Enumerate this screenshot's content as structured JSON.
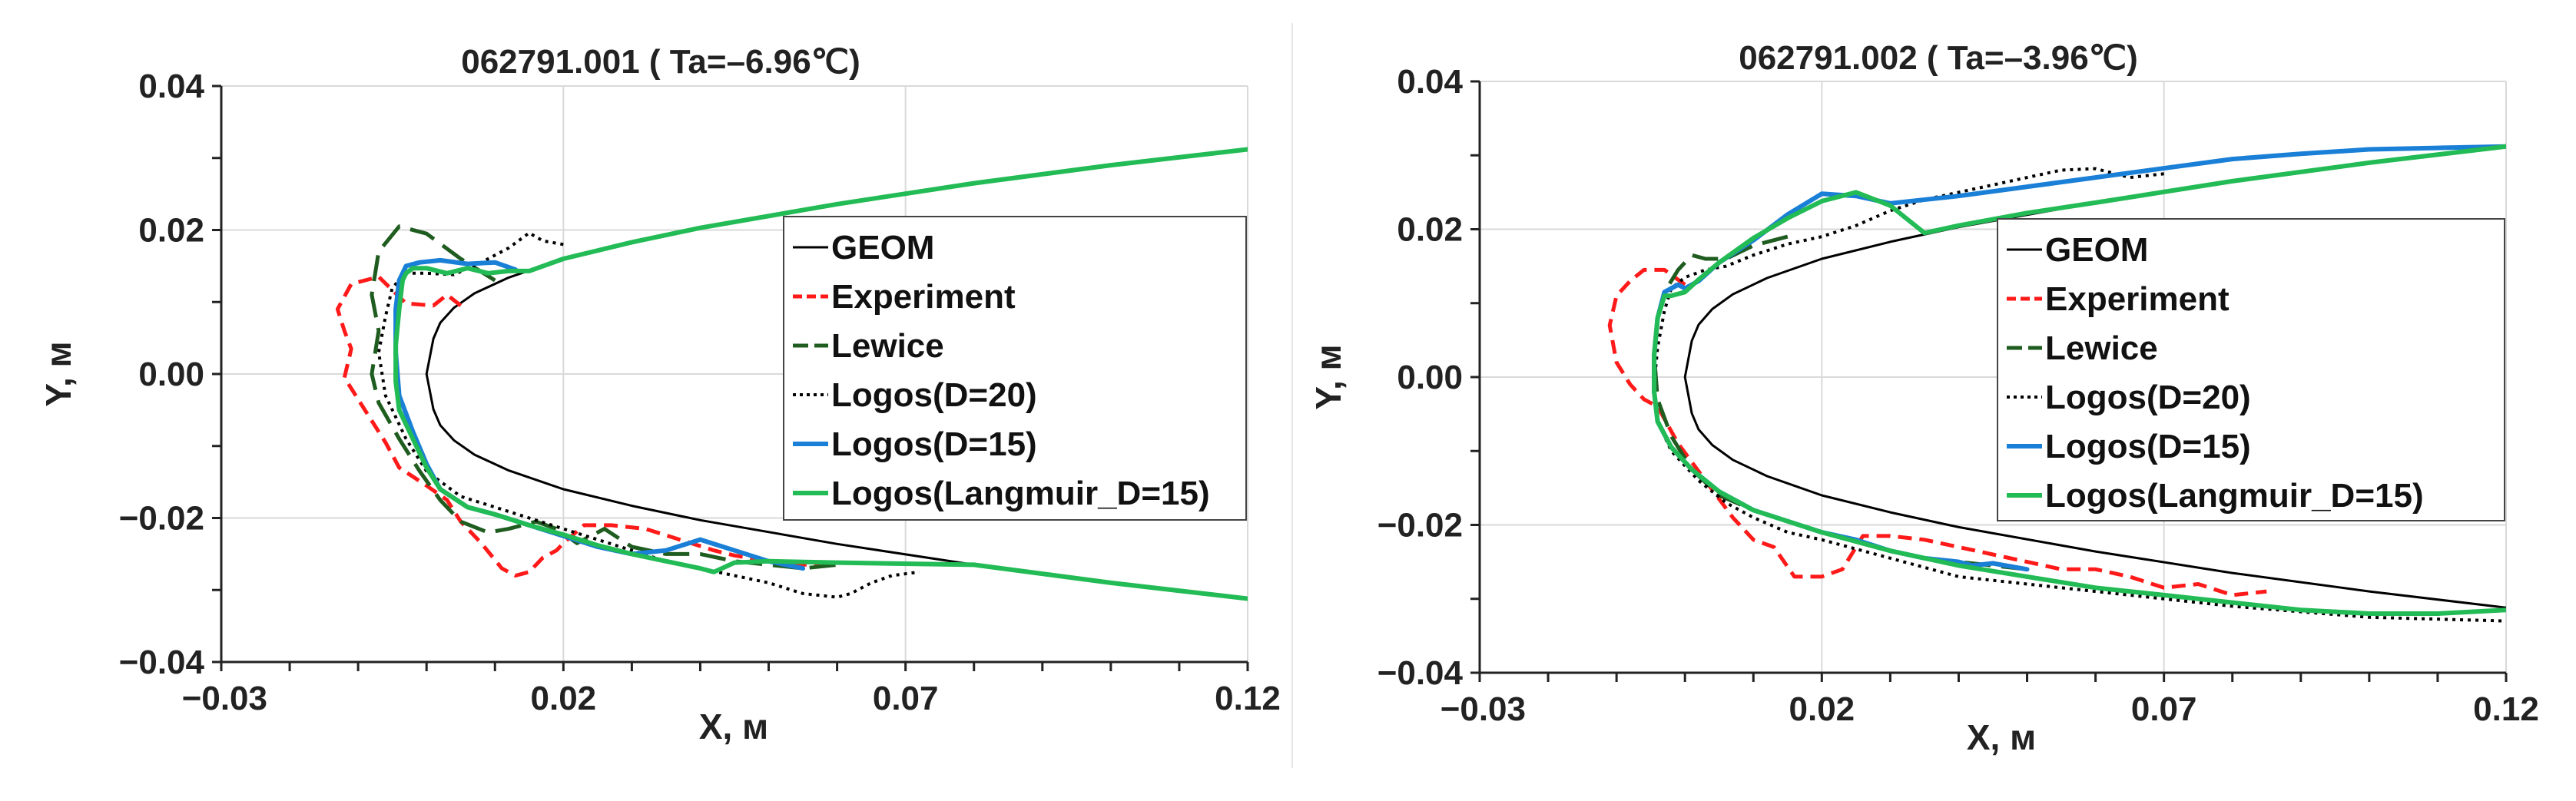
{
  "chart_data": [
    {
      "type": "line",
      "title": "062791.001 ( Ta=–6.96℃)",
      "xlabel": "X, м",
      "ylabel": "Y, м",
      "xlim": [
        -0.03,
        0.12
      ],
      "ylim": [
        -0.04,
        0.04
      ],
      "xticks": [
        "−0.03",
        "0.02",
        "0.07",
        "0.12"
      ],
      "yticks": [
        "0.04",
        "0.02",
        "0.00",
        "−0.02",
        "−0.04"
      ],
      "legend_position": "right",
      "series": [
        {
          "name": "GEOM",
          "color": "#000000",
          "style": "solid",
          "width": 3,
          "x": [
            0.12,
            0.1,
            0.08,
            0.06,
            0.04,
            0.03,
            0.02,
            0.012,
            0.007,
            0.004,
            0.002,
            0.001,
            0.0,
            0.001,
            0.002,
            0.004,
            0.007,
            0.012,
            0.02,
            0.03,
            0.04,
            0.06,
            0.08,
            0.1,
            0.12
          ],
          "y": [
            0.0312,
            0.029,
            0.0265,
            0.0236,
            0.0203,
            0.0183,
            0.016,
            0.0134,
            0.0112,
            0.0092,
            0.0071,
            0.0049,
            0.0,
            -0.0049,
            -0.0071,
            -0.0092,
            -0.0112,
            -0.0134,
            -0.016,
            -0.0183,
            -0.0203,
            -0.0236,
            -0.0265,
            -0.029,
            -0.0312
          ]
        },
        {
          "name": "Experiment",
          "color": "#ff1a1a",
          "style": "dashed",
          "width": 5,
          "x": [
            0.005,
            0.003,
            0.001,
            -0.003,
            -0.007,
            -0.011,
            -0.013,
            -0.012,
            -0.011,
            -0.012,
            -0.009,
            -0.006,
            -0.004,
            0.0,
            0.003,
            0.005,
            0.008,
            0.011,
            0.013,
            0.015,
            0.017,
            0.019,
            0.02,
            0.023,
            0.027,
            0.032,
            0.037,
            0.042,
            0.045,
            0.05,
            0.055,
            0.06
          ],
          "y": [
            0.0095,
            0.011,
            0.0095,
            0.0098,
            0.0135,
            0.0125,
            0.009,
            0.006,
            0.0035,
            -0.0005,
            -0.005,
            -0.0095,
            -0.013,
            -0.0155,
            -0.0175,
            -0.0205,
            -0.0235,
            -0.027,
            -0.028,
            -0.0275,
            -0.0255,
            -0.0245,
            -0.0235,
            -0.021,
            -0.021,
            -0.0215,
            -0.023,
            -0.0245,
            -0.0252,
            -0.026,
            -0.0265,
            -0.0262
          ]
        },
        {
          "name": "Lewice",
          "color": "#1f5c1f",
          "style": "longdash",
          "width": 5,
          "x": [
            0.01,
            0.005,
            0.0,
            -0.004,
            -0.007,
            -0.008,
            -0.007,
            -0.008,
            -0.007,
            -0.004,
            -0.001,
            0.002,
            0.005,
            0.009,
            0.012,
            0.016,
            0.019,
            0.022,
            0.026,
            0.03,
            0.035,
            0.04,
            0.045,
            0.05,
            0.055,
            0.06
          ],
          "y": [
            0.013,
            0.016,
            0.0195,
            0.0205,
            0.017,
            0.011,
            0.006,
            0.0,
            -0.004,
            -0.009,
            -0.0135,
            -0.0175,
            -0.0205,
            -0.022,
            -0.0215,
            -0.0205,
            -0.0215,
            -0.0235,
            -0.0215,
            -0.024,
            -0.025,
            -0.025,
            -0.026,
            -0.0265,
            -0.027,
            -0.0265
          ]
        },
        {
          "name": "Logos(D=20)",
          "color": "#000000",
          "style": "dotted",
          "width": 4,
          "x": [
            0.02,
            0.017,
            0.015,
            0.012,
            0.008,
            0.004,
            0.0,
            -0.003,
            -0.005,
            -0.006,
            -0.007,
            -0.006,
            -0.003,
            0.0,
            0.005,
            0.01,
            0.015,
            0.02,
            0.025,
            0.03,
            0.035,
            0.04,
            0.045,
            0.05,
            0.055,
            0.06,
            0.062,
            0.065,
            0.068,
            0.072
          ],
          "y": [
            0.018,
            0.0185,
            0.0196,
            0.0175,
            0.0155,
            0.0138,
            0.014,
            0.014,
            0.012,
            0.008,
            0.003,
            -0.003,
            -0.009,
            -0.0135,
            -0.017,
            -0.0185,
            -0.02,
            -0.0215,
            -0.023,
            -0.0245,
            -0.026,
            -0.027,
            -0.028,
            -0.029,
            -0.0305,
            -0.031,
            -0.0305,
            -0.029,
            -0.028,
            -0.0275
          ]
        },
        {
          "name": "Logos(D=15)",
          "color": "#1a7fd6",
          "style": "solid",
          "width": 6,
          "x": [
            0.013,
            0.01,
            0.006,
            0.002,
            -0.001,
            -0.003,
            -0.004,
            -0.0045,
            -0.0045,
            -0.004,
            -0.002,
            0.0,
            0.002,
            0.006,
            0.01,
            0.015,
            0.02,
            0.025,
            0.03,
            0.035,
            0.04,
            0.045,
            0.05,
            0.055
          ],
          "y": [
            0.0145,
            0.0155,
            0.0153,
            0.0158,
            0.0155,
            0.015,
            0.013,
            0.009,
            0.003,
            -0.003,
            -0.008,
            -0.0125,
            -0.016,
            -0.0185,
            -0.0195,
            -0.021,
            -0.0225,
            -0.024,
            -0.025,
            -0.0245,
            -0.023,
            -0.0245,
            -0.026,
            -0.027
          ]
        },
        {
          "name": "Logos(Langmuir_D=15)",
          "color": "#22bb55",
          "style": "solid",
          "width": 6,
          "x": [
            0.12,
            0.1,
            0.08,
            0.06,
            0.04,
            0.03,
            0.02,
            0.015,
            0.012,
            0.009,
            0.006,
            0.003,
            0.0,
            -0.002,
            -0.003,
            -0.0035,
            -0.004,
            -0.0045,
            -0.0045,
            -0.004,
            -0.002,
            0.0,
            0.002,
            0.006,
            0.01,
            0.015,
            0.02,
            0.025,
            0.03,
            0.035,
            0.04,
            0.042,
            0.045,
            0.05,
            0.06,
            0.08,
            0.1,
            0.12
          ],
          "y": [
            0.0312,
            0.029,
            0.0265,
            0.0236,
            0.0203,
            0.0183,
            0.016,
            0.0143,
            0.0143,
            0.014,
            0.0147,
            0.014,
            0.0147,
            0.0147,
            0.014,
            0.013,
            0.009,
            0.004,
            -0.001,
            -0.005,
            -0.009,
            -0.013,
            -0.016,
            -0.0185,
            -0.0195,
            -0.021,
            -0.0223,
            -0.0238,
            -0.025,
            -0.026,
            -0.027,
            -0.0275,
            -0.0262,
            -0.026,
            -0.0262,
            -0.0265,
            -0.029,
            -0.0312
          ]
        }
      ]
    },
    {
      "type": "line",
      "title": "062791.002 ( Ta=–3.96℃)",
      "xlabel": "X, м",
      "ylabel": "Y, м",
      "xlim": [
        -0.03,
        0.12
      ],
      "ylim": [
        -0.04,
        0.04
      ],
      "xticks": [
        "−0.03",
        "0.02",
        "0.07",
        "0.12"
      ],
      "yticks": [
        "0.04",
        "0.02",
        "0.00",
        "−0.02",
        "−0.04"
      ],
      "legend_position": "right",
      "series": [
        {
          "name": "GEOM",
          "color": "#000000",
          "style": "solid",
          "width": 3,
          "x": [
            0.12,
            0.1,
            0.08,
            0.06,
            0.04,
            0.03,
            0.02,
            0.012,
            0.007,
            0.004,
            0.002,
            0.001,
            0.0,
            0.001,
            0.002,
            0.004,
            0.007,
            0.012,
            0.02,
            0.03,
            0.04,
            0.06,
            0.08,
            0.1,
            0.12
          ],
          "y": [
            0.0312,
            0.029,
            0.0265,
            0.0236,
            0.0203,
            0.0183,
            0.016,
            0.0134,
            0.0112,
            0.0092,
            0.0071,
            0.0049,
            0.0,
            -0.0049,
            -0.0071,
            -0.0092,
            -0.0112,
            -0.0134,
            -0.016,
            -0.0183,
            -0.0203,
            -0.0236,
            -0.0265,
            -0.029,
            -0.0312
          ]
        },
        {
          "name": "Experiment",
          "color": "#ff1a1a",
          "style": "dashed",
          "width": 5,
          "x": [
            0.0,
            -0.003,
            -0.006,
            -0.008,
            -0.01,
            -0.011,
            -0.01,
            -0.008,
            -0.006,
            -0.004,
            -0.001,
            0.003,
            0.007,
            0.01,
            0.013,
            0.016,
            0.018,
            0.02,
            0.023,
            0.026,
            0.03,
            0.035,
            0.04,
            0.045,
            0.05,
            0.055,
            0.06,
            0.065,
            0.07,
            0.075,
            0.08,
            0.085
          ],
          "y": [
            0.0125,
            0.0145,
            0.0145,
            0.013,
            0.011,
            0.007,
            0.002,
            -0.001,
            -0.003,
            -0.004,
            -0.009,
            -0.014,
            -0.019,
            -0.022,
            -0.023,
            -0.027,
            -0.027,
            -0.027,
            -0.026,
            -0.0215,
            -0.0215,
            -0.022,
            -0.023,
            -0.024,
            -0.025,
            -0.026,
            -0.026,
            -0.027,
            -0.0285,
            -0.028,
            -0.0295,
            -0.029
          ]
        },
        {
          "name": "Lewice",
          "color": "#1f5c1f",
          "style": "longdash",
          "width": 5,
          "x": [
            0.015,
            0.01,
            0.006,
            0.003,
            0.001,
            -0.001,
            -0.003,
            -0.004,
            -0.0045,
            -0.004,
            -0.002,
            0.001,
            0.005,
            0.01,
            0.015,
            0.02,
            0.025,
            0.03,
            0.035,
            0.04,
            0.045,
            0.05
          ],
          "y": [
            0.019,
            0.0178,
            0.016,
            0.016,
            0.0165,
            0.0145,
            0.0115,
            0.008,
            0.003,
            -0.003,
            -0.008,
            -0.0125,
            -0.016,
            -0.018,
            -0.0195,
            -0.021,
            -0.022,
            -0.0235,
            -0.0245,
            -0.025,
            -0.0255,
            -0.026
          ]
        },
        {
          "name": "Logos(D=20)",
          "color": "#000000",
          "style": "dotted",
          "width": 4,
          "x": [
            0.07,
            0.065,
            0.06,
            0.055,
            0.05,
            0.045,
            0.04,
            0.035,
            0.03,
            0.025,
            0.02,
            0.015,
            0.01,
            0.006,
            0.003,
            0.0,
            -0.002,
            -0.003,
            -0.004,
            -0.0045,
            -0.004,
            -0.002,
            0.002,
            0.006,
            0.01,
            0.015,
            0.02,
            0.03,
            0.04,
            0.06,
            0.08,
            0.1,
            0.12
          ],
          "y": [
            0.0275,
            0.027,
            0.0282,
            0.028,
            0.027,
            0.026,
            0.025,
            0.024,
            0.0225,
            0.0205,
            0.019,
            0.018,
            0.0165,
            0.015,
            0.0145,
            0.0135,
            0.012,
            0.009,
            0.004,
            -0.001,
            -0.006,
            -0.01,
            -0.014,
            -0.017,
            -0.019,
            -0.021,
            -0.022,
            -0.0245,
            -0.027,
            -0.029,
            -0.031,
            -0.0325,
            -0.033
          ]
        },
        {
          "name": "Logos(D=15)",
          "color": "#1a7fd6",
          "style": "solid",
          "width": 6,
          "x": [
            0.12,
            0.11,
            0.1,
            0.09,
            0.08,
            0.06,
            0.04,
            0.03,
            0.025,
            0.02,
            0.015,
            0.01,
            0.005,
            0.002,
            0.0,
            -0.001,
            -0.003,
            -0.004,
            -0.0045,
            -0.0045,
            -0.004,
            -0.002,
            0.001,
            0.005,
            0.01,
            0.015,
            0.02,
            0.025,
            0.03,
            0.035,
            0.04,
            0.042,
            0.045,
            0.05
          ],
          "y": [
            0.0312,
            0.031,
            0.0308,
            0.0302,
            0.0295,
            0.027,
            0.0245,
            0.0235,
            0.0245,
            0.0248,
            0.022,
            0.0185,
            0.0155,
            0.013,
            0.012,
            0.0125,
            0.0115,
            0.008,
            0.003,
            -0.002,
            -0.006,
            -0.0095,
            -0.0125,
            -0.0155,
            -0.018,
            -0.0195,
            -0.021,
            -0.022,
            -0.0235,
            -0.0245,
            -0.025,
            -0.0255,
            -0.0252,
            -0.026
          ]
        },
        {
          "name": "Logos(Langmuir_D=15)",
          "color": "#22bb55",
          "style": "solid",
          "width": 6,
          "x": [
            0.12,
            0.1,
            0.08,
            0.06,
            0.05,
            0.04,
            0.035,
            0.03,
            0.025,
            0.02,
            0.015,
            0.01,
            0.005,
            0.002,
            0.0,
            -0.002,
            -0.003,
            -0.004,
            -0.0045,
            -0.0045,
            -0.004,
            -0.002,
            0.001,
            0.005,
            0.01,
            0.015,
            0.02,
            0.03,
            0.04,
            0.05,
            0.06,
            0.07,
            0.08,
            0.09,
            0.1,
            0.11,
            0.12
          ],
          "y": [
            0.0312,
            0.029,
            0.0265,
            0.0236,
            0.0222,
            0.0205,
            0.0195,
            0.0232,
            0.025,
            0.0238,
            0.0215,
            0.0188,
            0.0155,
            0.0132,
            0.0115,
            0.011,
            0.011,
            0.008,
            0.003,
            -0.002,
            -0.006,
            -0.0095,
            -0.0125,
            -0.0155,
            -0.018,
            -0.0195,
            -0.021,
            -0.0235,
            -0.0255,
            -0.027,
            -0.0285,
            -0.0295,
            -0.0305,
            -0.0315,
            -0.032,
            -0.032,
            -0.0315
          ]
        }
      ]
    }
  ]
}
